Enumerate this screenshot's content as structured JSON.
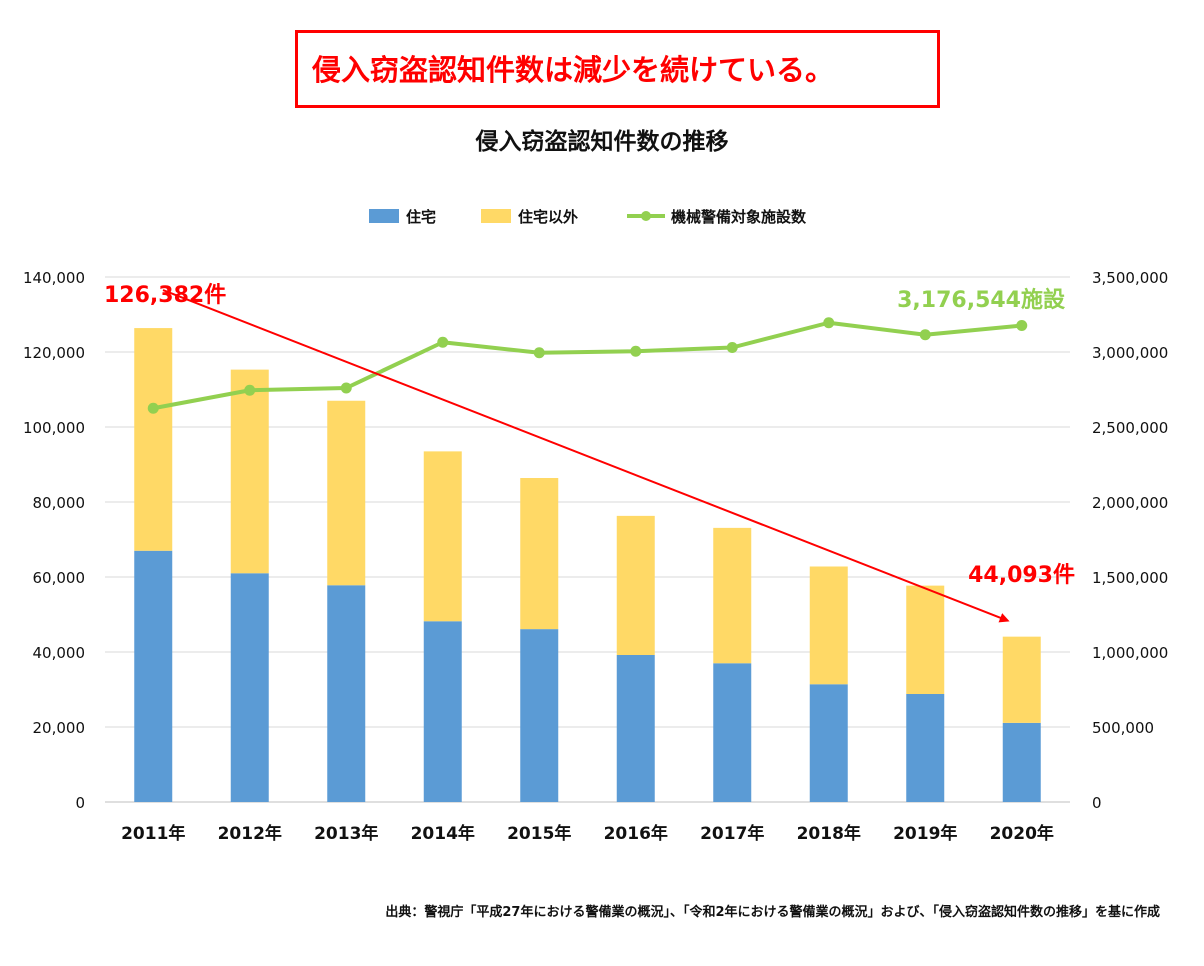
{
  "headline": "侵入窃盗認知件数は減少を続けている。",
  "source": "出典：警視庁「平成27年における警備業の概況」、「令和2年における警備業の概況」および、「侵入窃盗認知件数の推移」を基に作成",
  "colors": {
    "residential": "#5b9bd5",
    "non_residential": "#ffd966",
    "facilities": "#92d050",
    "trend": "#ff0000",
    "grid": "#d9d9d9"
  },
  "chart_data": {
    "type": "bar",
    "title": "侵入窃盗認知件数の推移",
    "categories": [
      "2011年",
      "2012年",
      "2013年",
      "2014年",
      "2015年",
      "2016年",
      "2017年",
      "2018年",
      "2019年",
      "2020年"
    ],
    "series": [
      {
        "name": "住宅",
        "type": "bar",
        "stack": "total",
        "axis": "left",
        "values": [
          67000,
          61000,
          57800,
          48200,
          46100,
          39200,
          37000,
          31400,
          28800,
          21100
        ]
      },
      {
        "name": "住宅以外",
        "type": "bar",
        "stack": "total",
        "axis": "left",
        "values": [
          59382,
          54300,
          49200,
          45300,
          40300,
          37100,
          36100,
          31400,
          28900,
          22993
        ]
      },
      {
        "name": "機械警備対象施設数",
        "type": "line",
        "axis": "right",
        "values": [
          2625000,
          2745000,
          2760000,
          3065000,
          2995000,
          3005000,
          3030000,
          3195000,
          3115000,
          3176544
        ]
      }
    ],
    "left_axis": {
      "min": 0,
      "max": 140000,
      "step": 20000,
      "tick_labels": [
        "0",
        "20,000",
        "40,000",
        "60,000",
        "80,000",
        "100,000",
        "120,000",
        "140,000"
      ]
    },
    "right_axis": {
      "min": 0,
      "max": 3500000,
      "step": 500000,
      "tick_labels": [
        "0",
        "500,000",
        "1,000,000",
        "1,500,000",
        "2,000,000",
        "2,500,000",
        "3,000,000",
        "3,500,000"
      ]
    },
    "grid": true,
    "legend_position": "top",
    "annotations": {
      "start_total": "126,382件",
      "end_total": "44,093件",
      "facilities_latest": "3,176,544施設"
    }
  }
}
